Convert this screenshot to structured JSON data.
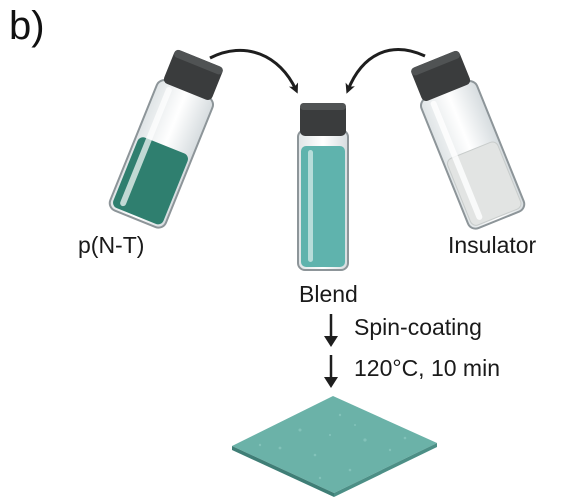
{
  "figure": {
    "panel_label": "b)",
    "vials": {
      "left": {
        "label": "p(N-T)",
        "liquid_color": "#2f7f6f"
      },
      "center": {
        "label": "Blend",
        "liquid_color": "#5fb3ad"
      },
      "right": {
        "label": "Insulator",
        "liquid_color": "#e2e4e3"
      }
    },
    "steps": [
      "Spin-coating",
      "120°C, 10 min"
    ],
    "film_color": "#6bb2a8",
    "cap_color": "#3a3c3d",
    "arrow_color": "#1e1e1e"
  }
}
